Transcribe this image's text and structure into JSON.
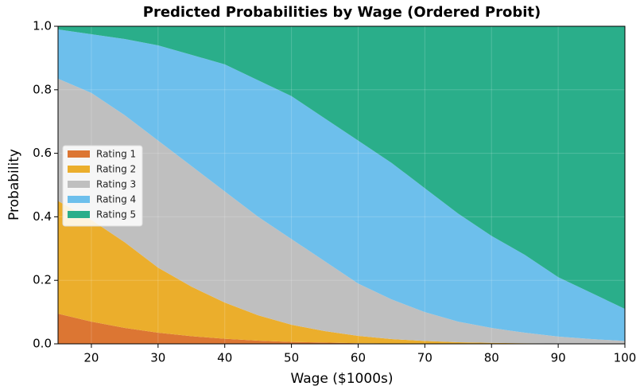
{
  "chart_data": {
    "type": "stacked_area",
    "title": "Predicted Probabilities by Wage (Ordered Probit)",
    "x_label": "Wage ($1000s)",
    "y_label": "Probability",
    "x": [
      15,
      20,
      25,
      30,
      35,
      40,
      45,
      50,
      55,
      60,
      65,
      70,
      75,
      80,
      85,
      90,
      95,
      100
    ],
    "series": [
      {
        "name": "Rating 1",
        "color": "#dc7633",
        "values": [
          0.095,
          0.07,
          0.05,
          0.035,
          0.024,
          0.016,
          0.01,
          0.006,
          0.004,
          0.002,
          0.001,
          0,
          0,
          0,
          0,
          0,
          0,
          0
        ]
      },
      {
        "name": "Rating 2",
        "color": "#ebae2c",
        "values": [
          0.355,
          0.32,
          0.27,
          0.205,
          0.156,
          0.114,
          0.08,
          0.054,
          0.036,
          0.023,
          0.014,
          0.009,
          0.005,
          0.003,
          0.002,
          0.001,
          0.0005,
          0
        ]
      },
      {
        "name": "Rating 3",
        "color": "#bfbfbf",
        "values": [
          0.385,
          0.4,
          0.4,
          0.4,
          0.38,
          0.35,
          0.31,
          0.27,
          0.22,
          0.165,
          0.125,
          0.091,
          0.065,
          0.047,
          0.033,
          0.022,
          0.0145,
          0.009
        ]
      },
      {
        "name": "Rating 4",
        "color": "#6dbfec",
        "values": [
          0.155,
          0.185,
          0.24,
          0.3,
          0.35,
          0.4,
          0.43,
          0.45,
          0.45,
          0.45,
          0.43,
          0.39,
          0.34,
          0.29,
          0.245,
          0.187,
          0.145,
          0.101
        ]
      },
      {
        "name": "Rating 5",
        "color": "#2aae8a",
        "values": [
          0.01,
          0.025,
          0.04,
          0.06,
          0.09,
          0.12,
          0.17,
          0.22,
          0.29,
          0.36,
          0.43,
          0.51,
          0.59,
          0.66,
          0.72,
          0.79,
          0.84,
          0.89
        ]
      }
    ],
    "xlim": [
      15,
      100
    ],
    "xticks": [
      20,
      30,
      40,
      50,
      60,
      70,
      80,
      90,
      100
    ],
    "ylim": [
      0,
      1
    ],
    "yticks": [
      {
        "value": 0,
        "label": "0.0"
      },
      0.2,
      0.4,
      0.6,
      0.8,
      {
        "value": 1,
        "label": "1.0"
      }
    ],
    "grid": true,
    "legend": "center left"
  }
}
